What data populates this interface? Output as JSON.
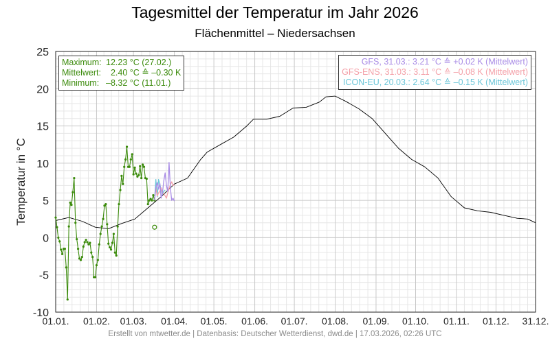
{
  "header": {
    "title": "Tagesmittel der Temperatur im Jahr 2026",
    "subtitle": "Flächenmittel – Niedersachsen"
  },
  "stats": {
    "max_label": "Maximum:",
    "max_value": "12.23 °C (27.02.)",
    "mean_label": "Mittelwert:",
    "mean_value": "  2.40 °C ≙ –0.30 K",
    "min_label": "Minimum:",
    "min_value": "–8.32 °C (11.01.)"
  },
  "models": {
    "gfs": "GFS, 31.03.: 3.21 °C ≙ +0.02 K (Mittelwert)",
    "gfs_ens": "GFS-ENS, 31.03.: 3.11 °C ≙ –0.08 K (Mittelwert)",
    "icon_eu": "ICON-EU, 20.03.: 2.64 °C ≙ –0.15 K (Mittelwert)"
  },
  "colors": {
    "observed": "#3a8a0a",
    "climatology": "#000000",
    "gfs": "#a98ce6",
    "gfs_ens": "#f4a0a8",
    "icon_eu": "#6cc6d8",
    "grid_major": "#c8c8c8",
    "grid_minor": "#e6e6e6"
  },
  "footer": {
    "credit": "Erstellt von mtwetter.de | Datenbasis: Deutscher Wetterdienst, dwd.de | 17.03.2026, 02:26 UTC"
  },
  "chart_data": {
    "type": "line",
    "title": "Tagesmittel der Temperatur im Jahr 2026",
    "subtitle": "Flächenmittel – Niedersachsen",
    "ylabel": "Temperatur in °C",
    "xlabel": "",
    "ylim": [
      -10,
      25
    ],
    "yticks": [
      -10,
      -5,
      0,
      5,
      10,
      15,
      20,
      25
    ],
    "ytick_labels": [
      "-10",
      "-5",
      "0",
      "5",
      "10",
      "15",
      "20",
      "25"
    ],
    "xlim": [
      "2026-01-01",
      "2026-12-31"
    ],
    "xtick_labels": [
      "01.01.",
      "01.02.",
      "01.03.",
      "01.04.",
      "01.05.",
      "01.06.",
      "01.07.",
      "01.08.",
      "01.09.",
      "01.10.",
      "01.11.",
      "01.12.",
      "31.12."
    ],
    "xtick_days": [
      0,
      31,
      59,
      90,
      120,
      151,
      181,
      212,
      243,
      273,
      304,
      334,
      364
    ],
    "grid": true,
    "legend": "none",
    "series": [
      {
        "name": "",
        "style": "climatology",
        "x": [
          0,
          10,
          20,
          30,
          40,
          50,
          60,
          70,
          80,
          90,
          100,
          110,
          115,
          125,
          135,
          145,
          150,
          160,
          170,
          180,
          190,
          200,
          205,
          212,
          220,
          230,
          240,
          250,
          260,
          270,
          280,
          290,
          300,
          310,
          320,
          330,
          340,
          350,
          358,
          364
        ],
        "y": [
          2.3,
          2.7,
          2.2,
          1.4,
          1.2,
          1.9,
          2.5,
          4.0,
          5.5,
          7.2,
          8.0,
          10.5,
          11.5,
          12.5,
          13.5,
          15.0,
          15.9,
          15.9,
          16.3,
          17.4,
          17.5,
          18.2,
          18.9,
          19.0,
          18.3,
          17.3,
          16.0,
          14.0,
          12.0,
          10.5,
          9.5,
          8.0,
          5.5,
          4.0,
          3.6,
          3.4,
          3.0,
          2.6,
          2.5,
          2.0
        ]
      },
      {
        "name": "",
        "style": "observed",
        "x": [
          0,
          1,
          2,
          3,
          4,
          5,
          6,
          7,
          8,
          9,
          10,
          11,
          12,
          13,
          14,
          15,
          16,
          17,
          18,
          19,
          20,
          21,
          22,
          23,
          24,
          25,
          26,
          27,
          28,
          29,
          30,
          31,
          32,
          33,
          34,
          35,
          36,
          37,
          38,
          39,
          40,
          41,
          42,
          43,
          44,
          45,
          46,
          47,
          48,
          49,
          50,
          51,
          52,
          53,
          54,
          55,
          56,
          57,
          58,
          59,
          60,
          61,
          62,
          63,
          64,
          65,
          66,
          67,
          68,
          69,
          70,
          71,
          72,
          73,
          74,
          75
        ],
        "y": [
          2.7,
          1.4,
          0.0,
          -0.5,
          -1.6,
          -2.2,
          -1.5,
          -1.5,
          -4.0,
          -8.3,
          1.5,
          4.7,
          4.4,
          6.1,
          8.0,
          2.0,
          -0.2,
          -1.5,
          -2.8,
          -3.0,
          -2.6,
          -1.2,
          -0.6,
          -0.3,
          -0.6,
          -0.9,
          -0.7,
          -2.0,
          -2.6,
          -5.3,
          -5.3,
          -3.7,
          -3.0,
          -0.9,
          0.5,
          1.5,
          2.5,
          4.3,
          4.5,
          1.8,
          -0.8,
          -1.3,
          -1.6,
          -0.7,
          0.5,
          -2.0,
          -2.4,
          1.5,
          4.5,
          6.4,
          8.3,
          7.2,
          9.5,
          10.5,
          12.2,
          9.5,
          9.5,
          10.5,
          11.2,
          8.5,
          9.4,
          8.6,
          8.2,
          8.4,
          9.6,
          8.0,
          9.8,
          9.5,
          8.0,
          7.9,
          4.5,
          5.0,
          5.2,
          5.0,
          5.7,
          5.0
        ]
      },
      {
        "name": "",
        "style": "icon_eu",
        "x": [
          75,
          76,
          77,
          78,
          79,
          80,
          81,
          82,
          83
        ],
        "y": [
          5.0,
          7.8,
          5.5,
          7.8,
          7.2,
          6.4,
          5.8,
          6.2,
          6.4
        ]
      },
      {
        "name": "",
        "style": "gfs_ens",
        "x": [
          75,
          76,
          77,
          78,
          79,
          80,
          81,
          82,
          83,
          84,
          85,
          86,
          87,
          88,
          89,
          90
        ],
        "y": [
          5.0,
          6.7,
          5.6,
          6.0,
          6.2,
          6.7,
          6.0,
          5.9,
          5.6,
          5.3,
          6.0,
          6.6,
          7.1,
          7.5,
          7.0,
          7.1
        ]
      },
      {
        "name": "",
        "style": "gfs",
        "x": [
          75,
          76,
          77,
          78,
          79,
          80,
          81,
          82,
          83,
          84,
          85,
          86,
          87,
          88,
          89,
          90
        ],
        "y": [
          5.0,
          6.7,
          7.4,
          6.5,
          7.3,
          5.3,
          6.0,
          7.6,
          8.7,
          7.0,
          6.2,
          10.1,
          6.7,
          5.0,
          5.3,
          4.9
        ]
      }
    ],
    "marker": {
      "x": 75,
      "y": 1.4,
      "shape": "open-circle"
    }
  }
}
